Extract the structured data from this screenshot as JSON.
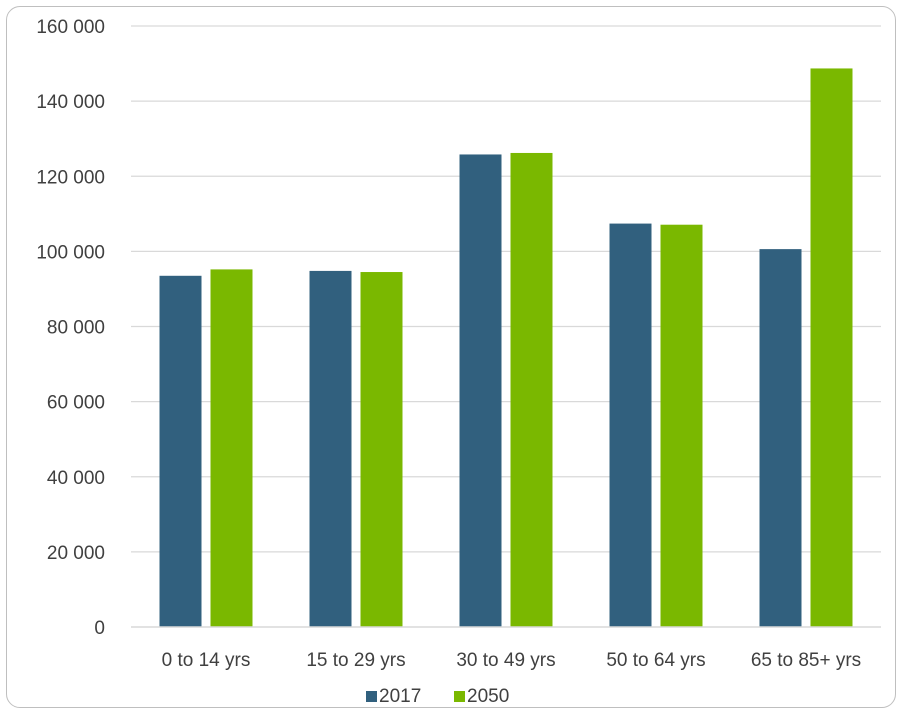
{
  "chart_data": {
    "type": "bar",
    "title": "",
    "xlabel": "",
    "ylabel": "",
    "categories": [
      "0 to 14 yrs",
      "15 to 29 yrs",
      "30 to 49 yrs",
      "50 to 64 yrs",
      "65 to 85+ yrs"
    ],
    "series": [
      {
        "name": "2017",
        "values": [
          93500,
          94800,
          125800,
          107400,
          100600
        ],
        "color": "#31607e"
      },
      {
        "name": "2050",
        "values": [
          95200,
          94500,
          126200,
          107100,
          148700
        ],
        "color": "#7ab800"
      }
    ],
    "ylim": [
      0,
      160000
    ],
    "yticks": [
      "0",
      "20 000",
      "40 000",
      "60 000",
      "80 000",
      "100 000",
      "120 000",
      "140 000",
      "160 000"
    ],
    "ytick_values": [
      0,
      20000,
      40000,
      60000,
      80000,
      100000,
      120000,
      140000,
      160000
    ],
    "grid": true,
    "legend_position": "bottom"
  }
}
